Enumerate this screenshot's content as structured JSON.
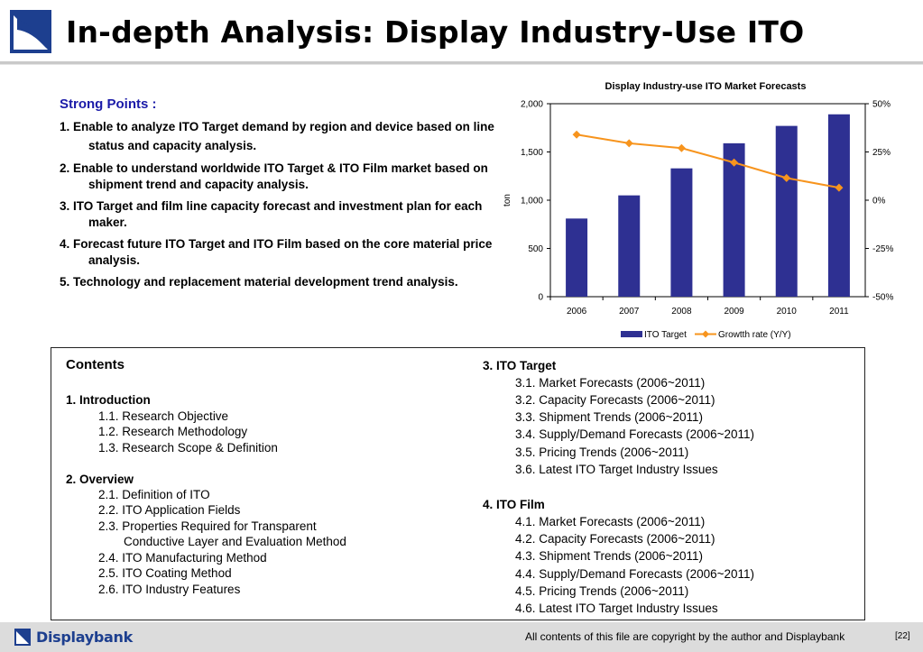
{
  "title": "In-depth Analysis: Display Industry-Use ITO",
  "strong_points": {
    "heading": "Strong Points :",
    "items": [
      "1. Enable to analyze ITO Target demand by region and device based on line status and capacity analysis.",
      "2. Enable to understand worldwide ITO Target & ITO Film market based on shipment trend and capacity analysis.",
      "3. ITO Target and film line capacity forecast and investment plan for each maker.",
      "4. Forecast future ITO Target and ITO Film based on the core material price analysis.",
      "5. Technology and replacement material development trend analysis."
    ]
  },
  "chart_data": {
    "type": "bar",
    "title": "Display Industry-use ITO Market Forecasts",
    "categories": [
      "2006",
      "2007",
      "2008",
      "2009",
      "2010",
      "2011"
    ],
    "ylabel": "ton",
    "ylim": [
      0,
      2000
    ],
    "y_ticks": [
      "0",
      "500",
      "1,000",
      "1,500",
      "2,000"
    ],
    "y2lim": [
      -50,
      50
    ],
    "y2_ticks": [
      "-50%",
      "-25%",
      "0%",
      "25%",
      "50%"
    ],
    "series": [
      {
        "name": "ITO Target",
        "type": "bar",
        "axis": "left",
        "color": "#2e3092",
        "values": [
          810,
          1050,
          1330,
          1590,
          1770,
          1890
        ]
      },
      {
        "name": "Growtth rate (Y/Y)",
        "type": "line",
        "axis": "right",
        "color": "#f7941d",
        "values": [
          34,
          29.5,
          27,
          19.5,
          11.5,
          6.5
        ]
      }
    ],
    "legend_position": "bottom"
  },
  "contents": {
    "heading": "Contents",
    "sections": [
      {
        "title": "1. Introduction",
        "items": [
          "1.1. Research Objective",
          "1.2. Research Methodology",
          "1.3. Research Scope & Definition"
        ]
      },
      {
        "title": "2. Overview",
        "items": [
          "2.1. Definition of ITO",
          "2.2. ITO Application Fields",
          "2.3. Properties Required for Transparent",
          "Conductive Layer and Evaluation Method",
          "2.4. ITO Manufacturing Method",
          "2.5. ITO Coating Method",
          "2.6. ITO Industry Features"
        ]
      },
      {
        "title": "3. ITO Target",
        "items": [
          "3.1. Market Forecasts (2006~2011)",
          "3.2. Capacity Forecasts (2006~2011)",
          "3.3. Shipment Trends (2006~2011)",
          "3.4. Supply/Demand Forecasts (2006~2011)",
          "3.5. Pricing Trends (2006~2011)",
          "3.6. Latest ITO Target Industry Issues"
        ]
      },
      {
        "title": "4. ITO Film",
        "items": [
          "4.1. Market Forecasts (2006~2011)",
          "4.2. Capacity Forecasts (2006~2011)",
          "4.3. Shipment Trends (2006~2011)",
          "4.4. Supply/Demand Forecasts (2006~2011)",
          "4.5. Pricing Trends (2006~2011)",
          "4.6. Latest ITO Target Industry Issues"
        ]
      }
    ]
  },
  "footer": {
    "brand": "Displaybank",
    "copyright": "All contents of this file are copyright by the author and Displaybank",
    "page": "[22]"
  },
  "colors": {
    "brand": "#1d3f8f",
    "heading_blue": "#1a1aa8",
    "bar": "#2e3092",
    "line": "#f7941d"
  }
}
